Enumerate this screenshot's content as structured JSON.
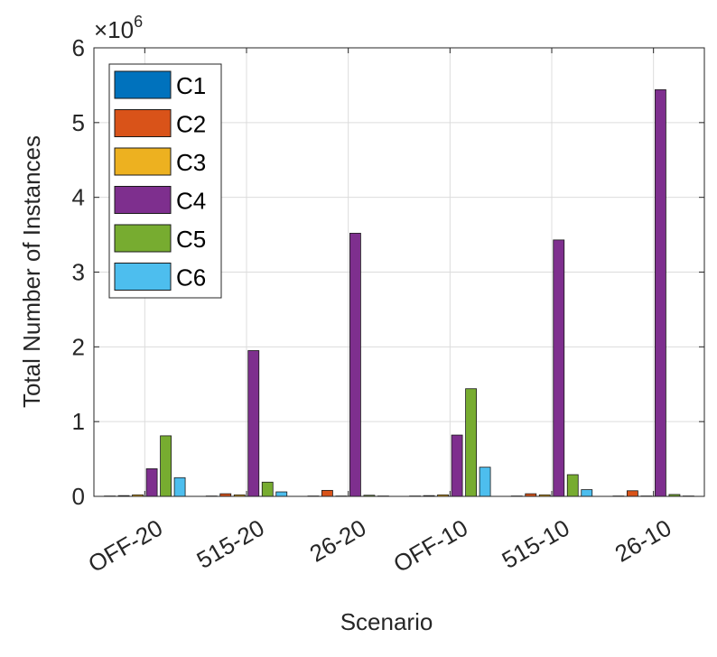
{
  "chart_data": {
    "type": "bar",
    "categories": [
      "OFF-20",
      "515-20",
      "26-20",
      "OFF-10",
      "515-10",
      "26-10"
    ],
    "series": [
      {
        "name": "C1",
        "color": "#0072BD",
        "values": [
          5000,
          5000,
          5000,
          5000,
          5000,
          5000
        ]
      },
      {
        "name": "C2",
        "color": "#D95319",
        "values": [
          10000,
          35000,
          80000,
          10000,
          35000,
          75000
        ]
      },
      {
        "name": "C3",
        "color": "#EDB120",
        "values": [
          20000,
          20000,
          5000,
          20000,
          20000,
          5000
        ]
      },
      {
        "name": "C4",
        "color": "#7E2F8E",
        "values": [
          370000,
          1950000,
          3520000,
          820000,
          3430000,
          5440000
        ]
      },
      {
        "name": "C5",
        "color": "#77AC30",
        "values": [
          810000,
          190000,
          15000,
          1440000,
          290000,
          25000
        ]
      },
      {
        "name": "C6",
        "color": "#4DBEEE",
        "values": [
          250000,
          60000,
          5000,
          390000,
          90000,
          5000
        ]
      }
    ],
    "title": "",
    "xlabel": "Scenario",
    "ylabel": "Total Number of Instances",
    "ylim": [
      0,
      6000000
    ],
    "yticks": [
      "0",
      "1",
      "2",
      "3",
      "4",
      "5",
      "6"
    ],
    "y_multiplier_base": "×10",
    "y_multiplier_exp": "6",
    "grid": true,
    "legend_position": "top-left"
  }
}
